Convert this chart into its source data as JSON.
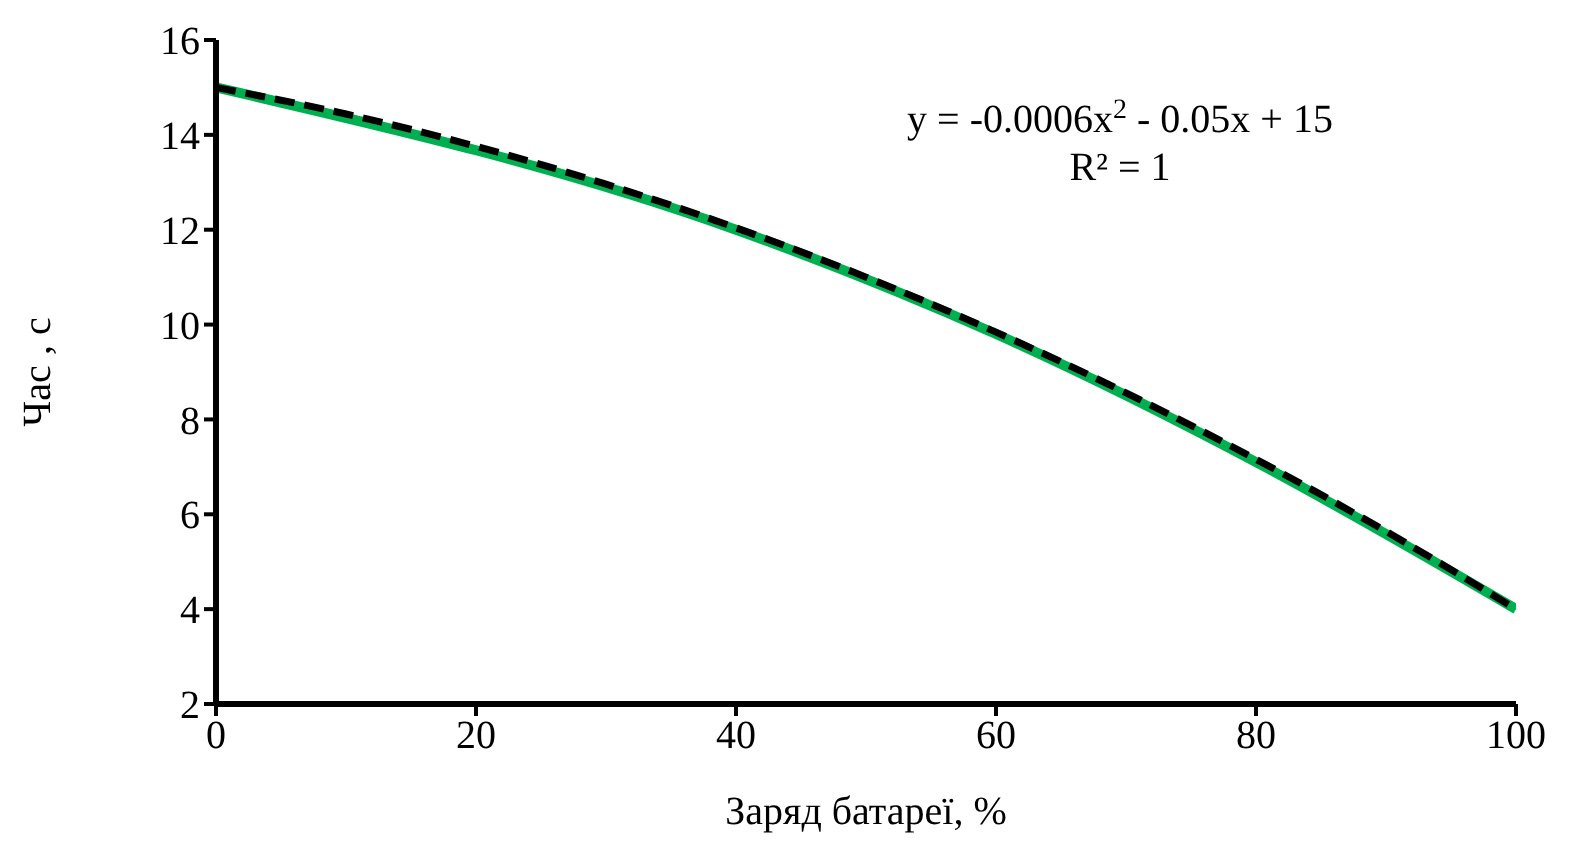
{
  "chart_data": {
    "type": "line",
    "xlabel": "Заряд батареї, %",
    "ylabel": "Час , с",
    "xlim": [
      0,
      100
    ],
    "xticks": [
      0,
      20,
      40,
      60,
      80,
      100
    ],
    "ylim": [
      2,
      16
    ],
    "yticks": [
      2,
      4,
      6,
      8,
      10,
      12,
      14,
      16
    ],
    "marker": "none",
    "series": [
      {
        "color": "#00b050",
        "x": [
          0,
          40,
          60,
          80,
          100
        ],
        "values": [
          15,
          12,
          9.8,
          7.1,
          4
        ],
        "line_style": "solid"
      },
      {
        "color": "#000000",
        "x": [
          0,
          10,
          20,
          30,
          40,
          50,
          60,
          70,
          80,
          90,
          100
        ],
        "values": [
          15,
          14.44,
          13.76,
          12.96,
          12.04,
          11,
          9.84,
          8.56,
          7.16,
          5.64,
          4
        ],
        "line_style": "dashed"
      }
    ],
    "annotations": [
      "y = -0.0006x$^{2}$ - 0.05x + 15",
      "R² = 1"
    ]
  }
}
